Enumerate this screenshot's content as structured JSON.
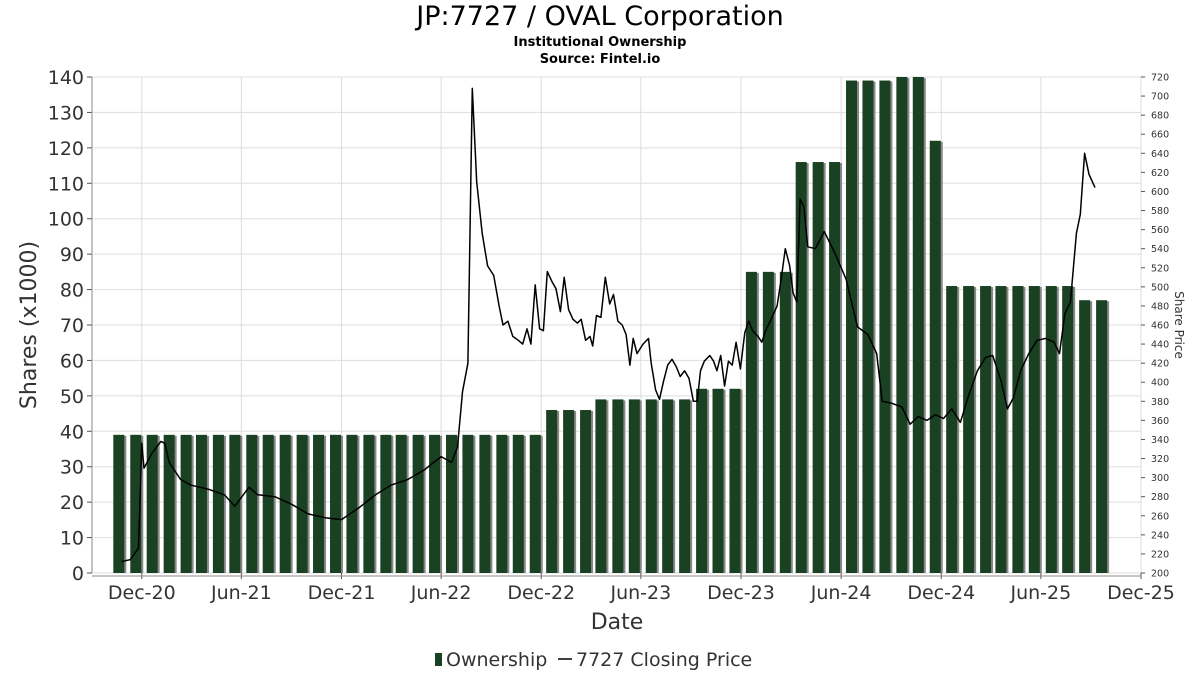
{
  "title": "JP:7727 / OVAL Corporation",
  "subtitle": "Institutional Ownership",
  "source": "Source: Fintel.io",
  "colors": {
    "bar": "#1a4222",
    "bar_shadow": "#888888",
    "line": "#000000",
    "grid": "#dddddd"
  },
  "chart_data": {
    "type": "bar",
    "xlabel": "Date",
    "ylabel": "Shares (x1000)",
    "y2label": "Share Price",
    "ylim": [
      0,
      140
    ],
    "y2lim": [
      200,
      720
    ],
    "xlim": [
      "2020-09-01",
      "2025-12-01"
    ],
    "grid": true,
    "legend_position": "bottom",
    "y_ticks": [
      0,
      10,
      20,
      30,
      40,
      50,
      60,
      70,
      80,
      90,
      100,
      110,
      120,
      130,
      140
    ],
    "y2_ticks": [
      200,
      220,
      240,
      260,
      280,
      300,
      320,
      340,
      360,
      380,
      400,
      420,
      440,
      460,
      480,
      500,
      520,
      540,
      560,
      580,
      600,
      620,
      640,
      660,
      680,
      700,
      720
    ],
    "x_ticks": [
      {
        "date": "2020-12-01",
        "label": "Dec-20"
      },
      {
        "date": "2021-06-01",
        "label": "Jun-21"
      },
      {
        "date": "2021-12-01",
        "label": "Dec-21"
      },
      {
        "date": "2022-06-01",
        "label": "Jun-22"
      },
      {
        "date": "2022-12-01",
        "label": "Dec-22"
      },
      {
        "date": "2023-06-01",
        "label": "Jun-23"
      },
      {
        "date": "2023-12-01",
        "label": "Dec-23"
      },
      {
        "date": "2024-06-01",
        "label": "Jun-24"
      },
      {
        "date": "2024-12-01",
        "label": "Dec-24"
      },
      {
        "date": "2025-06-01",
        "label": "Jun-25"
      },
      {
        "date": "2025-12-01",
        "label": "Dec-25"
      }
    ],
    "series": [
      {
        "name": "Ownership",
        "axis": "left",
        "kind": "bar",
        "points": [
          [
            "2020-10-20",
            39
          ],
          [
            "2020-11-20",
            39
          ],
          [
            "2020-12-20",
            39
          ],
          [
            "2021-01-20",
            39
          ],
          [
            "2021-02-20",
            39
          ],
          [
            "2021-03-20",
            39
          ],
          [
            "2021-04-20",
            39
          ],
          [
            "2021-05-20",
            39
          ],
          [
            "2021-06-20",
            39
          ],
          [
            "2021-07-20",
            39
          ],
          [
            "2021-08-20",
            39
          ],
          [
            "2021-09-20",
            39
          ],
          [
            "2021-10-20",
            39
          ],
          [
            "2021-11-20",
            39
          ],
          [
            "2021-12-20",
            39
          ],
          [
            "2022-01-20",
            39
          ],
          [
            "2022-02-20",
            39
          ],
          [
            "2022-03-20",
            39
          ],
          [
            "2022-04-20",
            39
          ],
          [
            "2022-05-20",
            39
          ],
          [
            "2022-06-20",
            39
          ],
          [
            "2022-07-20",
            39
          ],
          [
            "2022-08-20",
            39
          ],
          [
            "2022-09-20",
            39
          ],
          [
            "2022-10-20",
            39
          ],
          [
            "2022-11-20",
            39
          ],
          [
            "2022-12-20",
            46
          ],
          [
            "2023-01-20",
            46
          ],
          [
            "2023-02-20",
            46
          ],
          [
            "2023-03-20",
            49
          ],
          [
            "2023-04-20",
            49
          ],
          [
            "2023-05-20",
            49
          ],
          [
            "2023-06-20",
            49
          ],
          [
            "2023-07-20",
            49
          ],
          [
            "2023-08-20",
            49
          ],
          [
            "2023-09-20",
            52
          ],
          [
            "2023-10-20",
            52
          ],
          [
            "2023-11-20",
            52
          ],
          [
            "2023-12-20",
            85
          ],
          [
            "2024-01-20",
            85
          ],
          [
            "2024-02-20",
            85
          ],
          [
            "2024-03-20",
            116
          ],
          [
            "2024-04-20",
            116
          ],
          [
            "2024-05-20",
            116
          ],
          [
            "2024-06-20",
            139
          ],
          [
            "2024-07-20",
            139
          ],
          [
            "2024-08-20",
            139
          ],
          [
            "2024-09-20",
            140
          ],
          [
            "2024-10-20",
            140
          ],
          [
            "2024-11-20",
            122
          ],
          [
            "2024-12-20",
            81
          ],
          [
            "2025-01-20",
            81
          ],
          [
            "2025-02-20",
            81
          ],
          [
            "2025-03-20",
            81
          ],
          [
            "2025-04-20",
            81
          ],
          [
            "2025-05-20",
            81
          ],
          [
            "2025-06-20",
            81
          ],
          [
            "2025-07-20",
            81
          ],
          [
            "2025-08-20",
            77
          ],
          [
            "2025-09-20",
            77
          ]
        ]
      },
      {
        "name": "7727 Closing Price",
        "axis": "right",
        "kind": "line",
        "points": [
          [
            "2020-10-25",
            212
          ],
          [
            "2020-11-10",
            214
          ],
          [
            "2020-11-25",
            226
          ],
          [
            "2020-12-01",
            336
          ],
          [
            "2020-12-05",
            310
          ],
          [
            "2020-12-20",
            326
          ],
          [
            "2021-01-05",
            338
          ],
          [
            "2021-01-12",
            336
          ],
          [
            "2021-01-20",
            316
          ],
          [
            "2021-02-10",
            298
          ],
          [
            "2021-03-01",
            292
          ],
          [
            "2021-04-01",
            288
          ],
          [
            "2021-05-01",
            282
          ],
          [
            "2021-05-20",
            270
          ],
          [
            "2021-06-15",
            290
          ],
          [
            "2021-07-01",
            282
          ],
          [
            "2021-08-01",
            280
          ],
          [
            "2021-09-01",
            272
          ],
          [
            "2021-10-01",
            262
          ],
          [
            "2021-11-01",
            258
          ],
          [
            "2021-12-01",
            256
          ],
          [
            "2022-01-01",
            268
          ],
          [
            "2022-02-01",
            282
          ],
          [
            "2022-03-01",
            292
          ],
          [
            "2022-04-01",
            298
          ],
          [
            "2022-05-01",
            308
          ],
          [
            "2022-06-01",
            322
          ],
          [
            "2022-06-20",
            316
          ],
          [
            "2022-07-01",
            332
          ],
          [
            "2022-07-10",
            390
          ],
          [
            "2022-07-20",
            420
          ],
          [
            "2022-07-28",
            708
          ],
          [
            "2022-08-05",
            610
          ],
          [
            "2022-08-15",
            556
          ],
          [
            "2022-08-25",
            522
          ],
          [
            "2022-09-05",
            512
          ],
          [
            "2022-09-15",
            480
          ],
          [
            "2022-09-22",
            460
          ],
          [
            "2022-10-01",
            464
          ],
          [
            "2022-10-10",
            448
          ],
          [
            "2022-10-20",
            444
          ],
          [
            "2022-10-28",
            440
          ],
          [
            "2022-11-05",
            456
          ],
          [
            "2022-11-12",
            440
          ],
          [
            "2022-11-20",
            502
          ],
          [
            "2022-11-28",
            456
          ],
          [
            "2022-12-05",
            454
          ],
          [
            "2022-12-12",
            516
          ],
          [
            "2022-12-20",
            506
          ],
          [
            "2022-12-28",
            498
          ],
          [
            "2023-01-05",
            474
          ],
          [
            "2023-01-12",
            510
          ],
          [
            "2023-01-20",
            476
          ],
          [
            "2023-01-28",
            466
          ],
          [
            "2023-02-05",
            462
          ],
          [
            "2023-02-12",
            466
          ],
          [
            "2023-02-20",
            444
          ],
          [
            "2023-02-28",
            448
          ],
          [
            "2023-03-05",
            438
          ],
          [
            "2023-03-12",
            470
          ],
          [
            "2023-03-20",
            468
          ],
          [
            "2023-03-28",
            510
          ],
          [
            "2023-04-05",
            482
          ],
          [
            "2023-04-12",
            492
          ],
          [
            "2023-04-20",
            464
          ],
          [
            "2023-04-28",
            460
          ],
          [
            "2023-05-05",
            450
          ],
          [
            "2023-05-12",
            418
          ],
          [
            "2023-05-18",
            446
          ],
          [
            "2023-05-25",
            430
          ],
          [
            "2023-06-05",
            440
          ],
          [
            "2023-06-15",
            446
          ],
          [
            "2023-06-20",
            420
          ],
          [
            "2023-06-28",
            392
          ],
          [
            "2023-07-05",
            382
          ],
          [
            "2023-07-12",
            400
          ],
          [
            "2023-07-20",
            418
          ],
          [
            "2023-07-28",
            424
          ],
          [
            "2023-08-05",
            416
          ],
          [
            "2023-08-12",
            406
          ],
          [
            "2023-08-20",
            412
          ],
          [
            "2023-08-28",
            404
          ],
          [
            "2023-09-05",
            380
          ],
          [
            "2023-09-12",
            380
          ],
          [
            "2023-09-18",
            412
          ],
          [
            "2023-09-25",
            422
          ],
          [
            "2023-10-05",
            428
          ],
          [
            "2023-10-12",
            422
          ],
          [
            "2023-10-18",
            412
          ],
          [
            "2023-10-25",
            428
          ],
          [
            "2023-11-01",
            396
          ],
          [
            "2023-11-08",
            422
          ],
          [
            "2023-11-15",
            418
          ],
          [
            "2023-11-22",
            442
          ],
          [
            "2023-11-30",
            414
          ],
          [
            "2023-12-08",
            452
          ],
          [
            "2023-12-15",
            464
          ],
          [
            "2023-12-22",
            454
          ],
          [
            "2024-01-01",
            448
          ],
          [
            "2024-01-08",
            442
          ],
          [
            "2024-01-15",
            454
          ],
          [
            "2024-01-25",
            466
          ],
          [
            "2024-02-05",
            480
          ],
          [
            "2024-02-12",
            506
          ],
          [
            "2024-02-20",
            540
          ],
          [
            "2024-02-28",
            522
          ],
          [
            "2024-03-05",
            494
          ],
          [
            "2024-03-12",
            484
          ],
          [
            "2024-03-18",
            592
          ],
          [
            "2024-03-25",
            584
          ],
          [
            "2024-04-01",
            542
          ],
          [
            "2024-04-15",
            540
          ],
          [
            "2024-05-01",
            558
          ],
          [
            "2024-05-20",
            536
          ],
          [
            "2024-06-10",
            508
          ],
          [
            "2024-07-01",
            458
          ],
          [
            "2024-07-20",
            450
          ],
          [
            "2024-08-05",
            430
          ],
          [
            "2024-08-15",
            380
          ],
          [
            "2024-09-01",
            378
          ],
          [
            "2024-09-20",
            374
          ],
          [
            "2024-10-05",
            356
          ],
          [
            "2024-10-20",
            364
          ],
          [
            "2024-11-05",
            360
          ],
          [
            "2024-11-20",
            366
          ],
          [
            "2024-12-05",
            362
          ],
          [
            "2024-12-20",
            372
          ],
          [
            "2025-01-05",
            358
          ],
          [
            "2025-01-20",
            386
          ],
          [
            "2025-02-05",
            412
          ],
          [
            "2025-02-20",
            426
          ],
          [
            "2025-03-05",
            428
          ],
          [
            "2025-03-20",
            402
          ],
          [
            "2025-04-01",
            372
          ],
          [
            "2025-04-12",
            384
          ],
          [
            "2025-04-25",
            412
          ],
          [
            "2025-05-10",
            430
          ],
          [
            "2025-05-25",
            444
          ],
          [
            "2025-06-10",
            446
          ],
          [
            "2025-06-25",
            442
          ],
          [
            "2025-07-05",
            430
          ],
          [
            "2025-07-15",
            472
          ],
          [
            "2025-07-25",
            484
          ],
          [
            "2025-08-05",
            556
          ],
          [
            "2025-08-12",
            576
          ],
          [
            "2025-08-20",
            640
          ],
          [
            "2025-08-28",
            618
          ],
          [
            "2025-09-08",
            604
          ]
        ]
      }
    ]
  }
}
